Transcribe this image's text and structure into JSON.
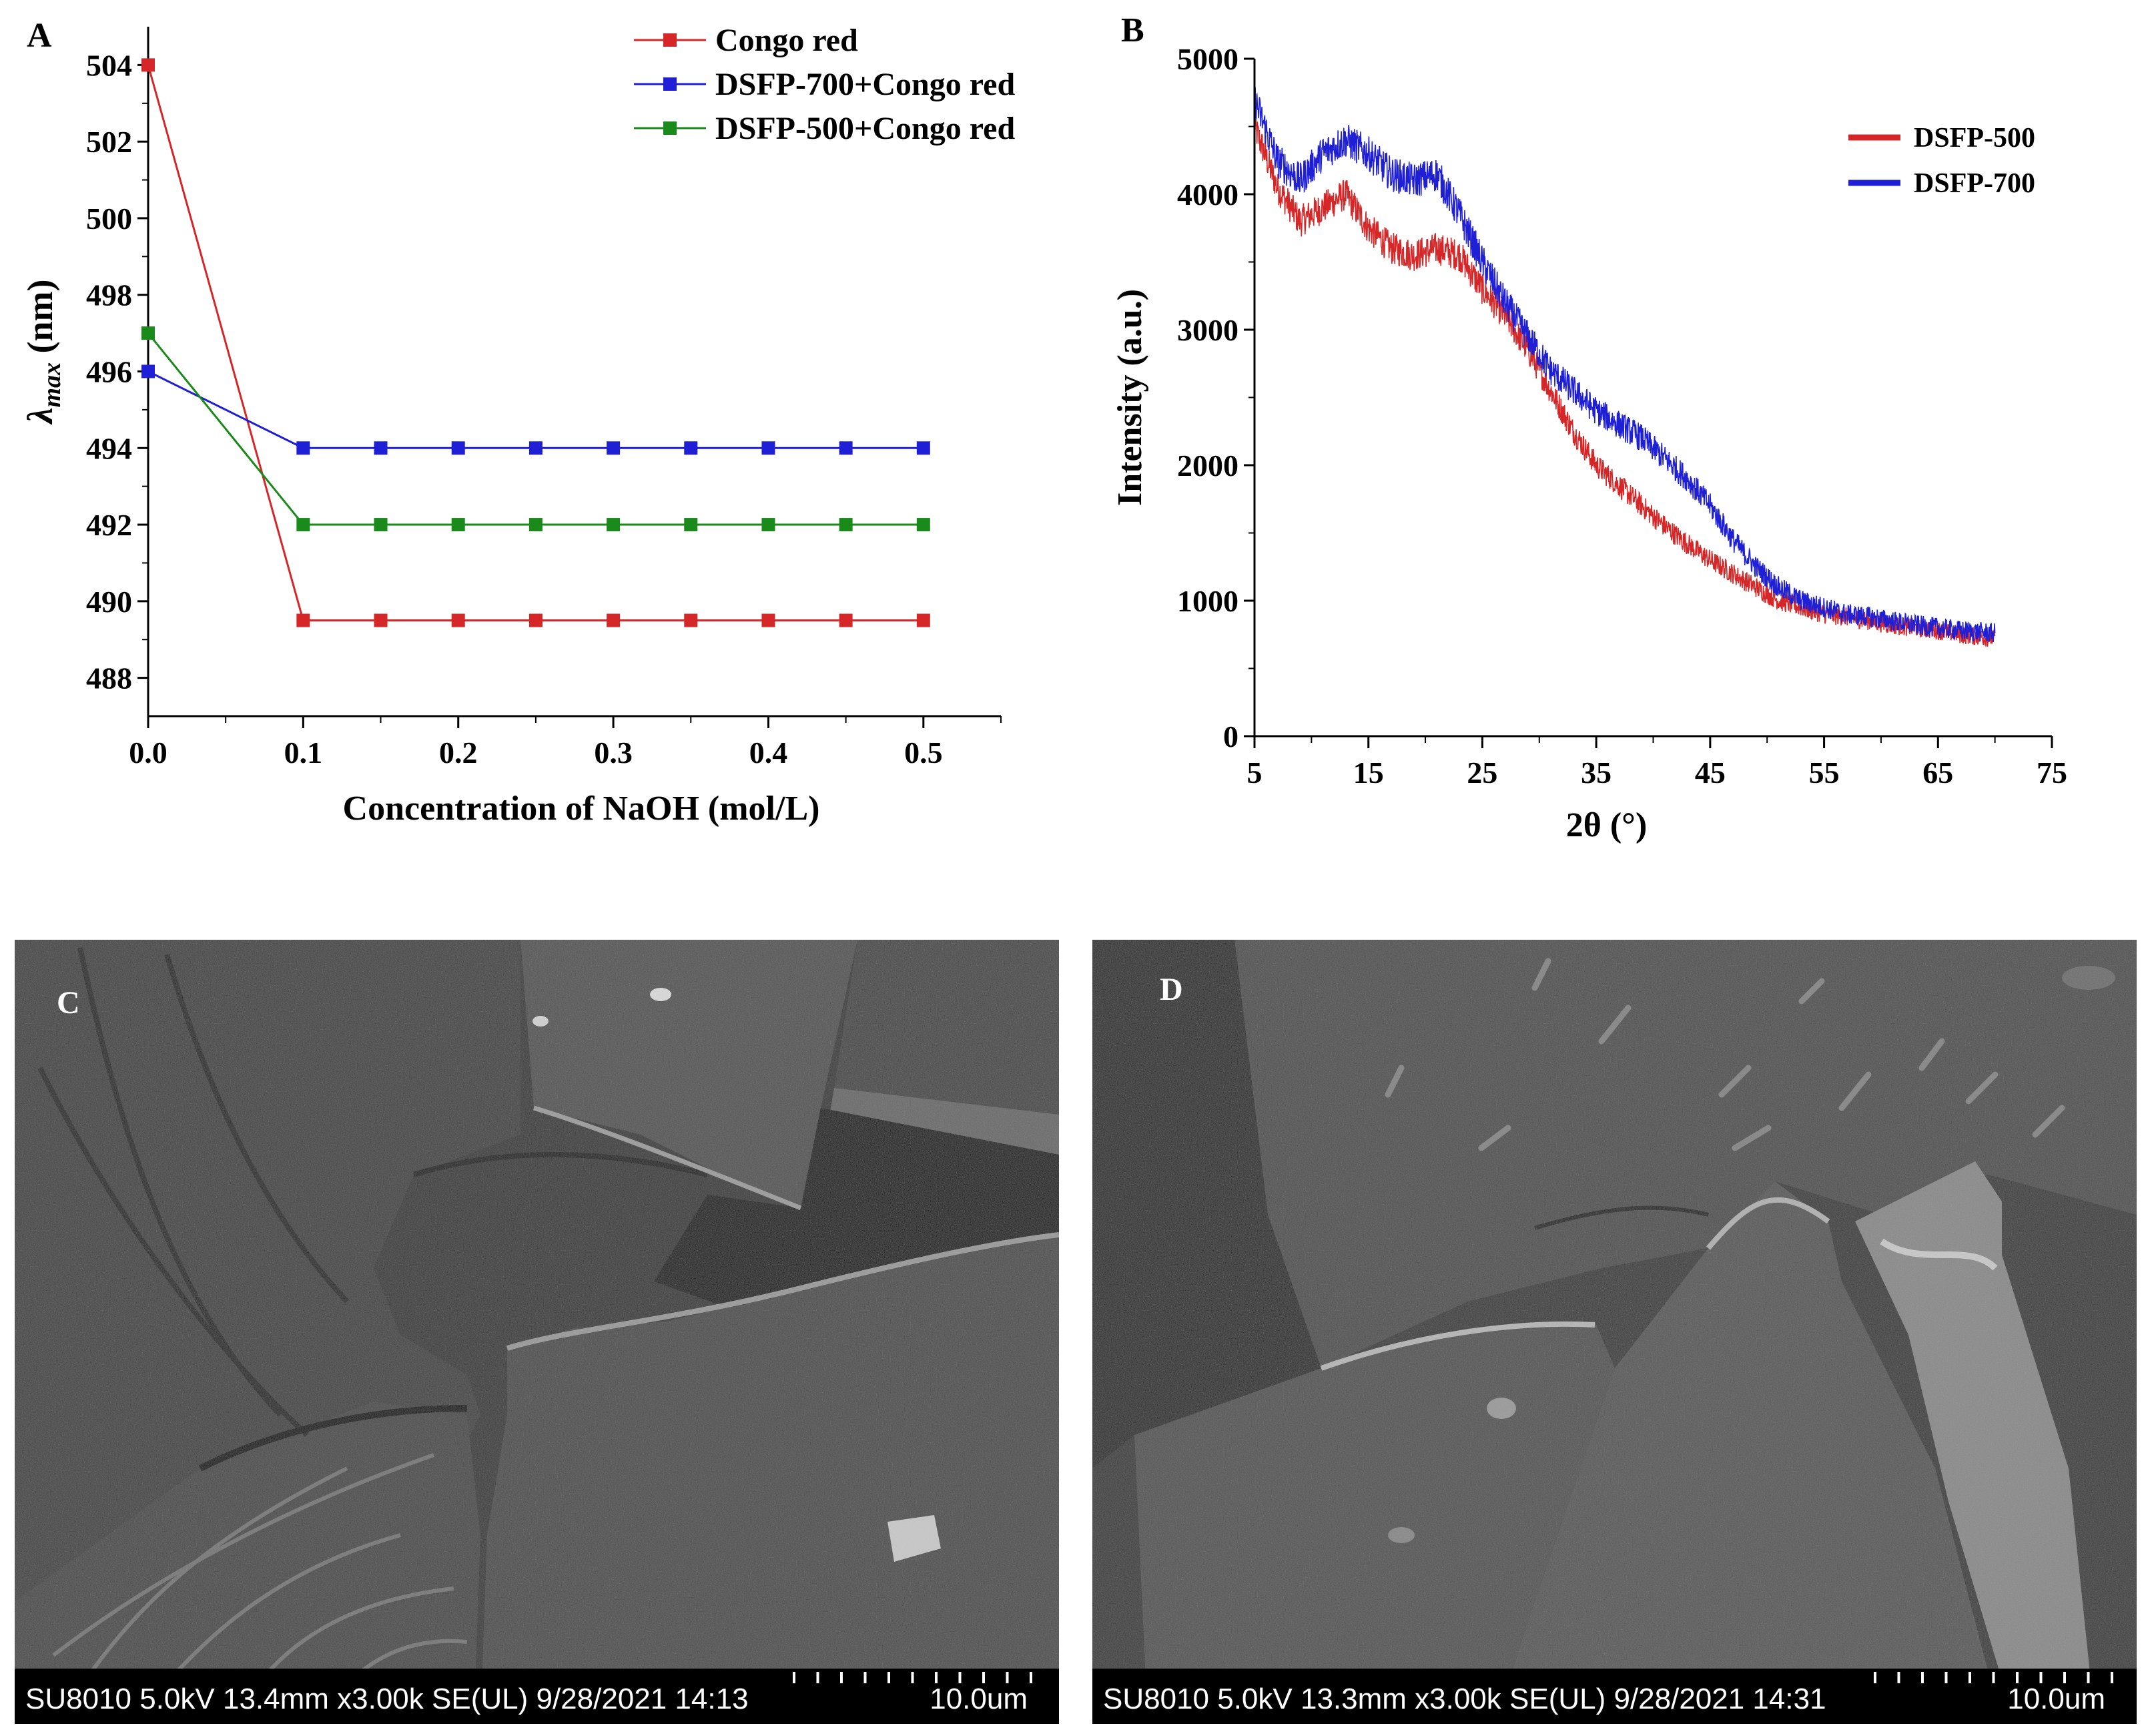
{
  "colors": {
    "red": "#d62728",
    "blue": "#1f1fd6",
    "green": "#1a8a1a",
    "sem_dark": "#2f2f2f",
    "sem_light": "#6f6f6f"
  },
  "chart_data": [
    {
      "panel": "A",
      "type": "line",
      "xlabel": "Concentration of NaOH  (mol/L)",
      "ylabel_main": "λ",
      "ylabel_sub": "max",
      "ylabel_unit": " (nm)",
      "xlim": [
        0.0,
        0.55
      ],
      "ylim": [
        487,
        505
      ],
      "xticks": [
        0.0,
        0.1,
        0.2,
        0.3,
        0.4,
        0.5
      ],
      "xtick_labels": [
        "0.0",
        "0.1",
        "0.2",
        "0.3",
        "0.4",
        "0.5"
      ],
      "yticks": [
        488,
        490,
        492,
        494,
        496,
        498,
        500,
        502,
        504
      ],
      "ytick_labels": [
        "488",
        "490",
        "492",
        "494",
        "496",
        "498",
        "500",
        "502",
        "504"
      ],
      "legend_position": "top-right",
      "x": [
        0.0,
        0.1,
        0.15,
        0.2,
        0.25,
        0.3,
        0.35,
        0.4,
        0.45,
        0.5
      ],
      "series": [
        {
          "name": "Congo red",
          "color": "#d62728",
          "values": [
            504,
            489.5,
            489.5,
            489.5,
            489.5,
            489.5,
            489.5,
            489.5,
            489.5,
            489.5
          ]
        },
        {
          "name": "DSFP-700+Congo red",
          "color": "#1f1fd6",
          "values": [
            496,
            494,
            494,
            494,
            494,
            494,
            494,
            494,
            494,
            494
          ]
        },
        {
          "name": "DSFP-500+Congo red",
          "color": "#1a8a1a",
          "values": [
            497,
            492,
            492,
            492,
            492,
            492,
            492,
            492,
            492,
            492
          ]
        }
      ]
    },
    {
      "panel": "B",
      "type": "line",
      "xlabel": "2θ (°)",
      "ylabel": "Intensity (a.u.)",
      "xlim": [
        5,
        75
      ],
      "ylim": [
        0,
        5000
      ],
      "xticks": [
        5,
        15,
        25,
        35,
        45,
        55,
        65,
        75
      ],
      "xtick_labels": [
        "5",
        "15",
        "25",
        "35",
        "45",
        "55",
        "65",
        "75"
      ],
      "yticks": [
        0,
        1000,
        2000,
        3000,
        4000,
        5000
      ],
      "ytick_labels": [
        "0",
        "1000",
        "2000",
        "3000",
        "4000",
        "5000"
      ],
      "legend_position": "top-right",
      "x": [
        5,
        7,
        9,
        11,
        13,
        15,
        17,
        19,
        21,
        23,
        25,
        27,
        29,
        31,
        33,
        35,
        37,
        39,
        41,
        43,
        45,
        47,
        49,
        51,
        53,
        55,
        57,
        59,
        61,
        63,
        65,
        67,
        70
      ],
      "series": [
        {
          "name": "DSFP-500",
          "color": "#d62728",
          "noise": 120,
          "values": [
            4500,
            4050,
            3800,
            3900,
            4000,
            3750,
            3600,
            3550,
            3600,
            3550,
            3300,
            3100,
            2850,
            2550,
            2250,
            2000,
            1850,
            1700,
            1550,
            1420,
            1300,
            1200,
            1100,
            1000,
            950,
            900,
            880,
            850,
            820,
            800,
            780,
            750,
            720
          ]
        },
        {
          "name": "DSFP-700",
          "color": "#1f1fd6",
          "noise": 130,
          "values": [
            4700,
            4250,
            4100,
            4300,
            4400,
            4300,
            4150,
            4100,
            4150,
            3850,
            3500,
            3200,
            2950,
            2700,
            2550,
            2400,
            2300,
            2200,
            2050,
            1900,
            1700,
            1450,
            1250,
            1100,
            1000,
            950,
            900,
            880,
            850,
            820,
            800,
            780,
            760
          ]
        }
      ]
    }
  ],
  "panels": {
    "c": {
      "label": "C",
      "info": "SU8010 5.0kV 13.4mm x3.00k SE(UL) 9/28/2021 14:13",
      "scale": "10.0um"
    },
    "d": {
      "label": "D",
      "info": "SU8010 5.0kV 13.3mm x3.00k SE(UL) 9/28/2021 14:31",
      "scale": "10.0um"
    }
  }
}
